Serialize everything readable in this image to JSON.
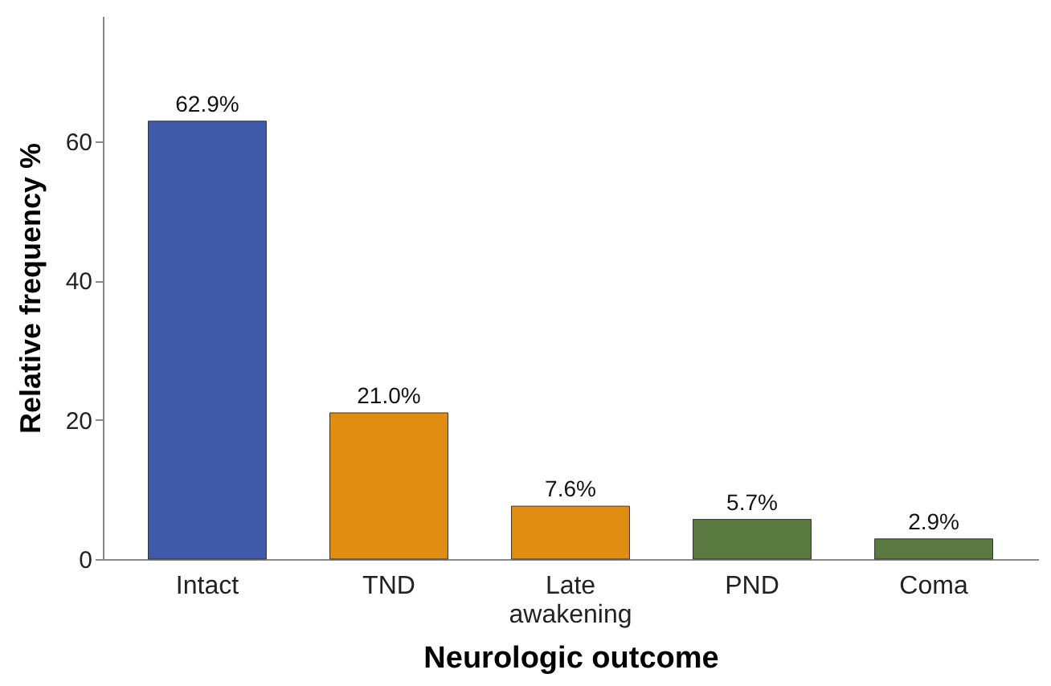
{
  "chart_data": {
    "type": "bar",
    "xlabel": "Neurologic outcome",
    "ylabel": "Relative frequency %",
    "categories": [
      "Intact",
      "TND",
      "Late awakening",
      "PND",
      "Coma"
    ],
    "values": [
      62.9,
      21.0,
      7.6,
      5.7,
      2.9
    ],
    "colors": [
      "#4159a9",
      "#e18d12",
      "#e18d12",
      "#5b7a42",
      "#5b7a42"
    ],
    "value_labels": [
      "62.9%",
      "21.0%",
      "7.6%",
      "5.7%",
      "2.9%"
    ],
    "ylim": [
      0,
      78
    ],
    "yticks": [
      0,
      20,
      40,
      60
    ],
    "grid": false
  }
}
